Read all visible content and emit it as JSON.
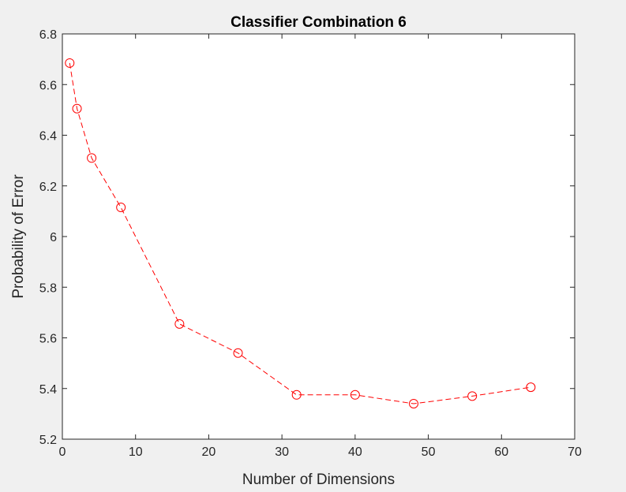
{
  "chart_data": {
    "type": "line",
    "title": "Classifier Combination 6",
    "xlabel": "Number of Dimensions",
    "ylabel": "Probability of Error",
    "xlim": [
      0,
      70
    ],
    "ylim": [
      5.2,
      6.8
    ],
    "xticks": [
      0,
      10,
      20,
      30,
      40,
      50,
      60,
      70
    ],
    "yticks": [
      5.2,
      5.4,
      5.6,
      5.8,
      6,
      6.2,
      6.4,
      6.6,
      6.8
    ],
    "xtick_labels": [
      "0",
      "10",
      "20",
      "30",
      "40",
      "50",
      "60",
      "70"
    ],
    "ytick_labels": [
      "5.2",
      "5.4",
      "5.6",
      "5.8",
      "6",
      "6.2",
      "6.4",
      "6.6",
      "6.8"
    ],
    "grid": false,
    "series": [
      {
        "x": [
          1,
          2,
          4,
          8,
          16,
          24,
          32,
          40,
          48,
          56,
          64
        ],
        "y": [
          6.685,
          6.505,
          6.31,
          6.115,
          5.655,
          5.54,
          5.375,
          5.375,
          5.34,
          5.37,
          5.405
        ],
        "color": "#ff0000",
        "line_style": "dashed",
        "marker": "circle"
      }
    ]
  }
}
